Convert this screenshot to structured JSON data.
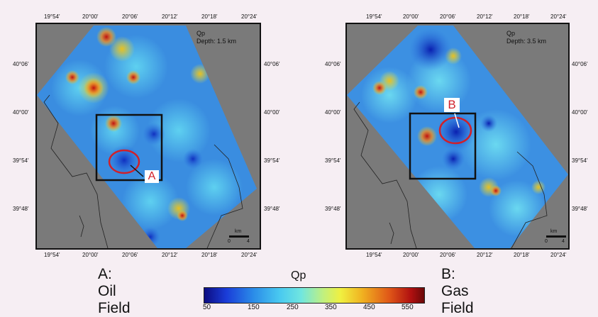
{
  "panel_a": {
    "title": "A: Oil Field",
    "legend_param": "Qp",
    "legend_depth": "Depth: 1.5 km",
    "marker": "A",
    "lon_ticks": [
      "19°54'",
      "20°00'",
      "20°06'",
      "20°12'",
      "20°18'",
      "20°24'"
    ],
    "lat_ticks": [
      "40°06'",
      "40°00'",
      "39°54'",
      "39°48'"
    ],
    "scale_unit": "km",
    "scale_min": "0",
    "scale_max": "4"
  },
  "panel_b": {
    "title": "B: Gas Field",
    "legend_param": "Qp",
    "legend_depth": "Depth: 3.5 km",
    "marker": "B",
    "lon_ticks": [
      "19°54'",
      "20°00'",
      "20°06'",
      "20°12'",
      "20°18'",
      "20°24'"
    ],
    "lat_ticks": [
      "40°06'",
      "40°00'",
      "39°54'",
      "39°48'"
    ],
    "scale_unit": "km",
    "scale_min": "0",
    "scale_max": "4"
  },
  "colorbar": {
    "title": "Qp",
    "ticks": [
      "50",
      "150",
      "250",
      "350",
      "450",
      "550"
    ],
    "min": 50,
    "max": 600
  },
  "colors": {
    "land": "#7a7a7a",
    "highlight": "#d0202a",
    "background": "#f6eef3"
  }
}
